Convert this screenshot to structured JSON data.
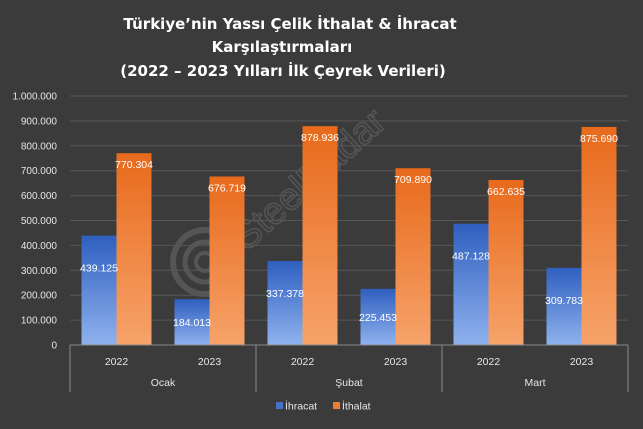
{
  "chart_data": {
    "type": "bar",
    "title_lines": [
      "Türkiye’nin Yassı Çelik İthalat & İhracat",
      "Karşılaştırmaları",
      "(2022 – 2023 Yılları İlk Çeyrek Verileri)"
    ],
    "watermark": "SteelRadar",
    "groups": [
      "Ocak",
      "Şubat",
      "Mart"
    ],
    "categories": [
      "2022",
      "2023",
      "2022",
      "2023",
      "2022",
      "2023"
    ],
    "ylim": [
      0,
      1000000
    ],
    "yticks": [
      "0",
      "100.000",
      "200.000",
      "300.000",
      "400.000",
      "500.000",
      "600.000",
      "700.000",
      "800.000",
      "900.000",
      "1.000.000"
    ],
    "grid": true,
    "legend_position": "bottom",
    "series": [
      {
        "name": "İhracat",
        "color": "#4472c4",
        "values": [
          439125,
          184013,
          337378,
          225453,
          487128,
          309783
        ],
        "labels": [
          "439.125",
          "184.013",
          "337.378",
          "225.453",
          "487.128",
          "309.783"
        ]
      },
      {
        "name": "İthalat",
        "color": "#ed7d31",
        "values": [
          770304,
          676719,
          878936,
          709890,
          662635,
          875690
        ],
        "labels": [
          "770.304",
          "676.719",
          "878.936",
          "709.890",
          "662.635",
          "875.690"
        ]
      }
    ]
  }
}
